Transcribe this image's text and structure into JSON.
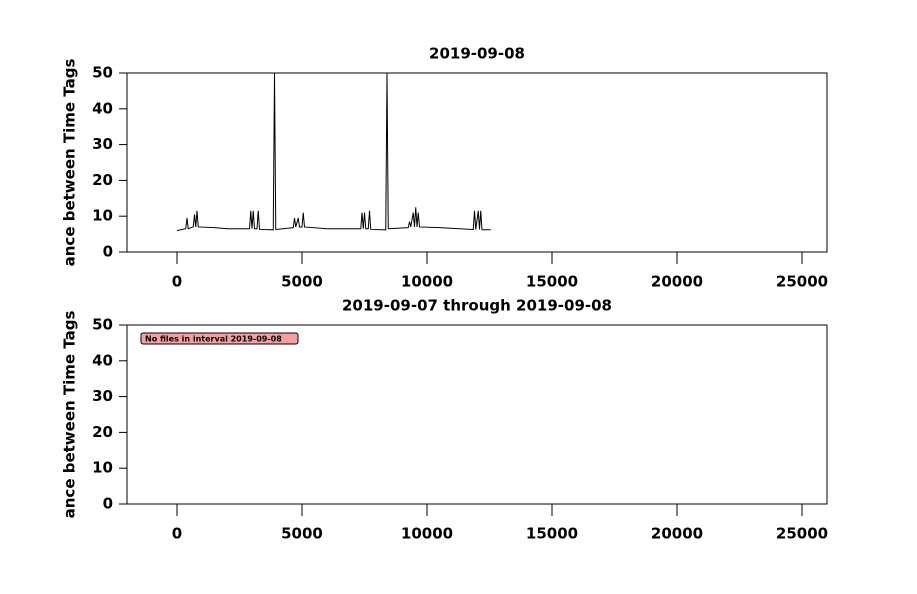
{
  "chart_data": [
    {
      "type": "line",
      "title": "2019-09-08",
      "ylabel": "ance between Time Tags",
      "x": [
        0,
        350,
        400,
        450,
        650,
        700,
        750,
        800,
        850,
        1500,
        2000,
        2900,
        2950,
        3000,
        3050,
        3100,
        3200,
        3250,
        3300,
        3850,
        3900,
        3950,
        4650,
        4700,
        4750,
        4850,
        4900,
        5000,
        5050,
        5100,
        6000,
        7350,
        7400,
        7450,
        7500,
        7550,
        7650,
        7700,
        7750,
        8350,
        8400,
        8450,
        9250,
        9300,
        9350,
        9450,
        9500,
        9550,
        9600,
        9650,
        9700,
        10500,
        11850,
        11900,
        11950,
        12050,
        12100,
        12150,
        12200,
        12550
      ],
      "series": [
        {
          "color": "#000000",
          "values": [
            6,
            6.5,
            9.5,
            6.5,
            7,
            10.5,
            7,
            11.5,
            7,
            6.8,
            6.5,
            6.5,
            11.5,
            6.5,
            11.5,
            6.5,
            6.5,
            11.5,
            6.3,
            6.2,
            50,
            6.3,
            6.8,
            9.5,
            7,
            9.5,
            7,
            7,
            11,
            7,
            6.5,
            6.5,
            11,
            6.5,
            11,
            6.5,
            6.5,
            11.5,
            6.3,
            6.2,
            50,
            6.5,
            6.8,
            8.5,
            7,
            11,
            7,
            12.5,
            7,
            11,
            7,
            6.8,
            6.3,
            11.5,
            6.3,
            11.5,
            6.3,
            11.5,
            6.2,
            6.2
          ]
        }
      ],
      "xlim": [
        -2000,
        26000
      ],
      "ylim": [
        0,
        50
      ],
      "xticks": [
        0,
        5000,
        10000,
        15000,
        20000,
        25000
      ],
      "yticks": [
        0,
        10,
        20,
        30,
        40,
        50
      ]
    },
    {
      "type": "line",
      "title": "2019-09-07 through 2019-09-08",
      "ylabel": "ance between Time Tags",
      "annotation": "No files in interval 2019-09-08",
      "xlim": [
        -2000,
        26000
      ],
      "ylim": [
        0,
        50
      ],
      "xticks": [
        0,
        5000,
        10000,
        15000,
        20000,
        25000
      ],
      "yticks": [
        0,
        10,
        20,
        30,
        40,
        50
      ]
    }
  ]
}
